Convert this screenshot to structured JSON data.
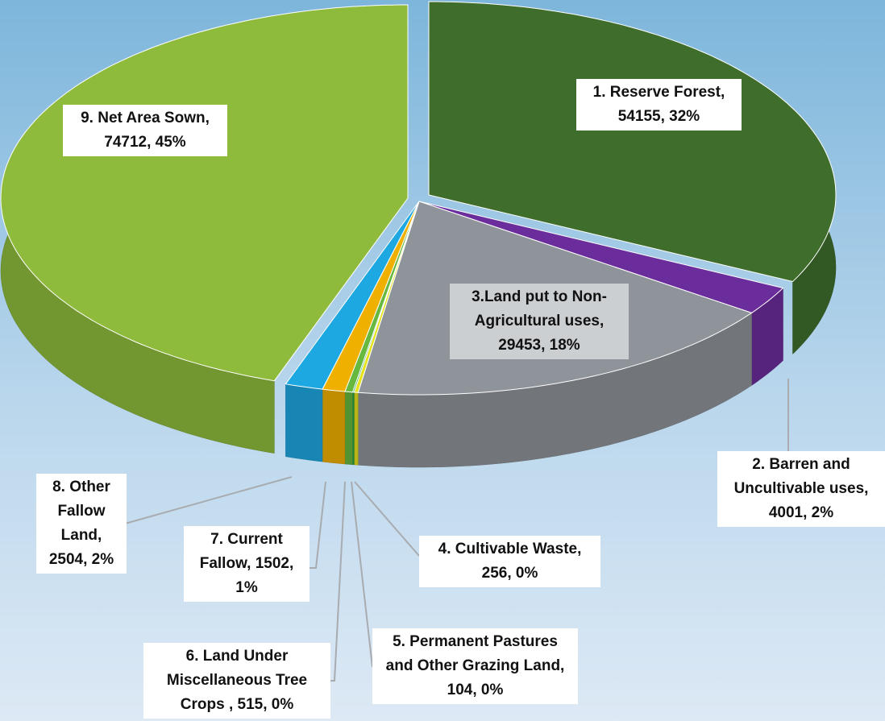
{
  "chart_data": {
    "type": "pie",
    "values": [
      54155,
      4001,
      29453,
      256,
      104,
      515,
      1502,
      2504,
      74712
    ],
    "value_labels": [
      "1. Reserve Forest, 54155, 32%",
      "2. Barren and Uncultivable uses, 4001, 2%",
      "3.Land put to Non-Agricultural uses, 29453, 18%",
      "4. Cultivable Waste, 256, 0%",
      "5. Permanent Pastures and Other Grazing Land, 104, 0%",
      "6. Land Under Miscellaneous Tree Crops , 515, 0%",
      "7. Current Fallow, 1502, 1%",
      "8. Other Fallow Land, 2504, 2%",
      "9. Net Area Sown, 74712, 45%"
    ],
    "colors": [
      "#3f6e2c",
      "#6b2d9c",
      "#8e949a",
      "#e6e21a",
      "#2aa44a",
      "#66b83e",
      "#f0b000",
      "#1ea8e2",
      "#8fbb3c"
    ]
  }
}
